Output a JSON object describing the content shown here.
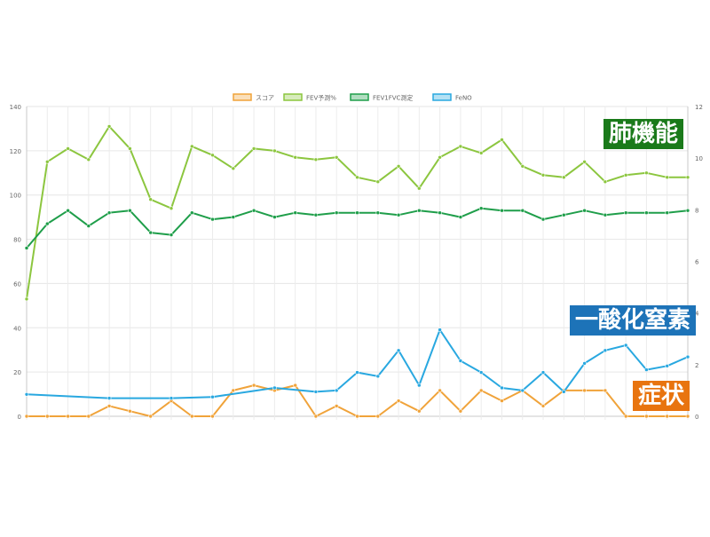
{
  "chart_data": {
    "type": "line",
    "x_count": 33,
    "left_axis": {
      "min": 0,
      "max": 140,
      "ticks": [
        0,
        20,
        40,
        60,
        80,
        100,
        120,
        140
      ]
    },
    "right_axis": {
      "min": 0,
      "max": 12,
      "ticks": [
        0,
        2,
        4,
        6,
        8,
        10,
        12
      ]
    },
    "grid": true,
    "legend_position": "top-center",
    "series": [
      {
        "name": "スコア",
        "axis": "right",
        "color": "#f0a33a",
        "values": [
          0,
          0,
          0,
          0,
          0.4,
          0.2,
          0,
          0.6,
          0,
          0,
          1,
          1.2,
          1,
          1.2,
          0,
          0.4,
          0,
          0,
          0.6,
          0.2,
          1,
          0.2,
          1,
          0.6,
          1,
          0.4,
          1,
          1,
          1,
          0,
          0,
          0,
          0
        ]
      },
      {
        "name": "FEV予測%",
        "axis": "left",
        "color": "#8cc63f",
        "values": [
          53,
          115,
          121,
          116,
          131,
          121,
          98,
          94,
          122,
          118,
          112,
          121,
          120,
          117,
          116,
          117,
          108,
          106,
          113,
          103,
          117,
          122,
          119,
          125,
          113,
          109,
          108,
          115,
          106,
          109,
          110,
          108,
          108
        ]
      },
      {
        "name": "FEV1FVC測定",
        "axis": "left",
        "color": "#1f9e4a",
        "values": [
          76,
          87,
          93,
          86,
          92,
          93,
          83,
          82,
          92,
          89,
          90,
          93,
          90,
          92,
          91,
          92,
          92,
          92,
          91,
          93,
          92,
          90,
          94,
          93,
          93,
          89,
          91,
          93,
          91,
          92,
          92,
          92,
          93
        ]
      },
      {
        "name": "FeNO",
        "axis": "right",
        "color": "#29a8e0",
        "values": [
          0.85,
          null,
          null,
          null,
          0.7,
          null,
          null,
          0.7,
          null,
          0.75,
          null,
          null,
          1.1,
          null,
          0.95,
          1.0,
          1.7,
          1.55,
          2.55,
          1.2,
          3.35,
          2.15,
          1.7,
          1.1,
          1.0,
          1.7,
          0.95,
          2.05,
          2.55,
          2.75,
          1.8,
          1.95,
          2.3
        ]
      }
    ],
    "annotations": [
      {
        "text": "肺機能",
        "color": "#1a7a1a"
      },
      {
        "text": "一酸化窒素",
        "color": "#1d73b8"
      },
      {
        "text": "症状",
        "color": "#e8740f"
      }
    ]
  }
}
